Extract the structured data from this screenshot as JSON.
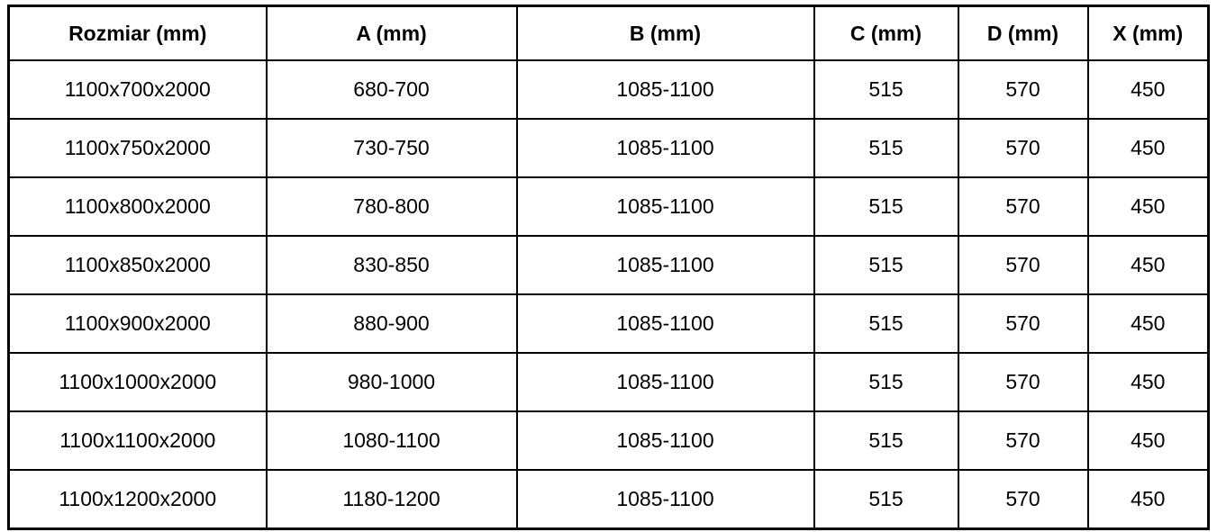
{
  "table": {
    "columns": [
      {
        "label": "Rozmiar (mm)"
      },
      {
        "label": "A (mm)"
      },
      {
        "label": "B (mm)"
      },
      {
        "label": "C (mm)"
      },
      {
        "label": "D (mm)"
      },
      {
        "label": "X (mm)"
      }
    ],
    "rows": [
      [
        "1100x700x2000",
        "680-700",
        "1085-1100",
        "515",
        "570",
        "450"
      ],
      [
        "1100x750x2000",
        "730-750",
        "1085-1100",
        "515",
        "570",
        "450"
      ],
      [
        "1100x800x2000",
        "780-800",
        "1085-1100",
        "515",
        "570",
        "450"
      ],
      [
        "1100x850x2000",
        "830-850",
        "1085-1100",
        "515",
        "570",
        "450"
      ],
      [
        "1100x900x2000",
        "880-900",
        "1085-1100",
        "515",
        "570",
        "450"
      ],
      [
        "1100x1000x2000",
        "980-1000",
        "1085-1100",
        "515",
        "570",
        "450"
      ],
      [
        "1100x1100x2000",
        "1080-1100",
        "1085-1100",
        "515",
        "570",
        "450"
      ],
      [
        "1100x1200x2000",
        "1180-1200",
        "1085-1100",
        "515",
        "570",
        "450"
      ]
    ]
  },
  "chart_data": {
    "type": "table",
    "title": "",
    "columns": [
      "Rozmiar (mm)",
      "A (mm)",
      "B (mm)",
      "C (mm)",
      "D (mm)",
      "X (mm)"
    ],
    "rows": [
      [
        "1100x700x2000",
        "680-700",
        "1085-1100",
        515,
        570,
        450
      ],
      [
        "1100x750x2000",
        "730-750",
        "1085-1100",
        515,
        570,
        450
      ],
      [
        "1100x800x2000",
        "780-800",
        "1085-1100",
        515,
        570,
        450
      ],
      [
        "1100x850x2000",
        "830-850",
        "1085-1100",
        515,
        570,
        450
      ],
      [
        "1100x900x2000",
        "880-900",
        "1085-1100",
        515,
        570,
        450
      ],
      [
        "1100x1000x2000",
        "980-1000",
        "1085-1100",
        515,
        570,
        450
      ],
      [
        "1100x1100x2000",
        "1080-1100",
        "1085-1100",
        515,
        570,
        450
      ],
      [
        "1100x1200x2000",
        "1180-1200",
        "1085-1100",
        515,
        570,
        450
      ]
    ],
    "colors": {
      "border": "#000000",
      "background": "#ffffff",
      "text": "#000000"
    }
  }
}
